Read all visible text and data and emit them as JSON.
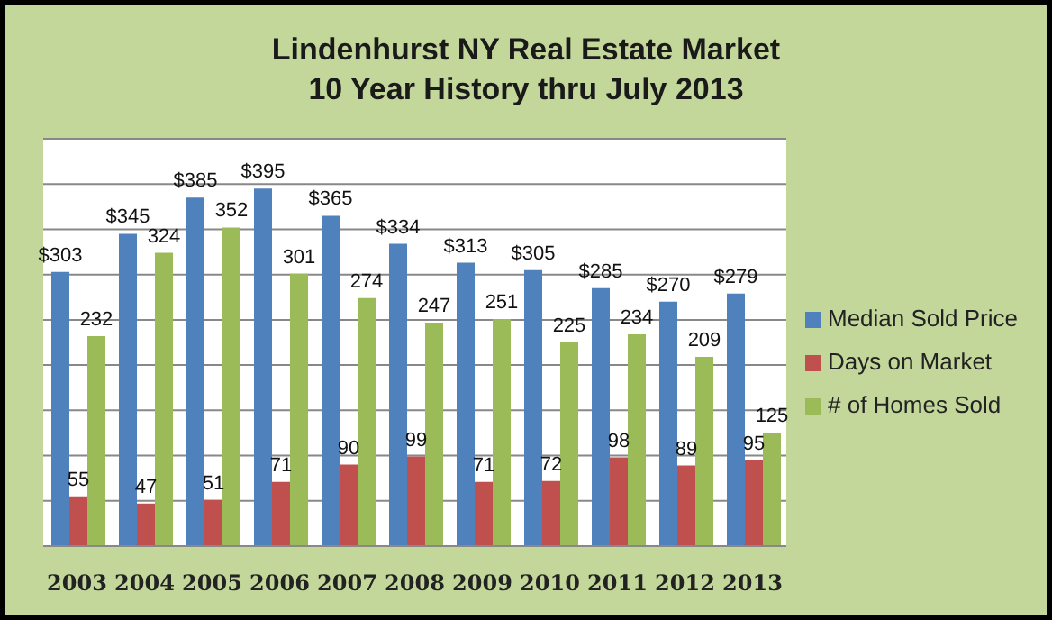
{
  "chart_data": {
    "type": "bar",
    "title": "Lindenhurst NY Real Estate Market",
    "subtitle": "10 Year History thru July 2013",
    "categories": [
      "2003",
      "2004",
      "2005",
      "2006",
      "2007",
      "2008",
      "2009",
      "2010",
      "2011",
      "2012",
      "2013"
    ],
    "series": [
      {
        "name": "Median Sold Price",
        "color": "#4f81bd",
        "values": [
          303,
          345,
          385,
          395,
          365,
          334,
          313,
          305,
          285,
          270,
          279
        ],
        "value_labels": [
          "$303",
          "$345",
          "$385",
          "$395",
          "$365",
          "$334",
          "$313",
          "$305",
          "$285",
          "$270",
          "$279"
        ]
      },
      {
        "name": "Days on Market",
        "color": "#c0504d",
        "values": [
          55,
          47,
          51,
          71,
          90,
          99,
          71,
          72,
          98,
          89,
          95
        ]
      },
      {
        "name": "# of Homes Sold",
        "color": "#9bbb59",
        "values": [
          232,
          324,
          352,
          301,
          274,
          247,
          251,
          225,
          234,
          209,
          125
        ]
      }
    ],
    "ylim": [
      0,
      450
    ],
    "yticks": [
      {
        "value": 0,
        "label": null
      },
      {
        "value": 50,
        "label": null
      },
      {
        "value": 100,
        "label": null
      },
      {
        "value": 150,
        "label": null
      },
      {
        "value": 200,
        "label": null
      },
      {
        "value": 250,
        "label": null
      },
      {
        "value": 300,
        "label": null
      },
      {
        "value": 350,
        "label": null
      },
      {
        "value": 400,
        "label": null
      },
      {
        "value": 450,
        "label": null
      }
    ],
    "tick_labels": "x",
    "grid": "y",
    "data_labels": true,
    "legend": "right"
  }
}
